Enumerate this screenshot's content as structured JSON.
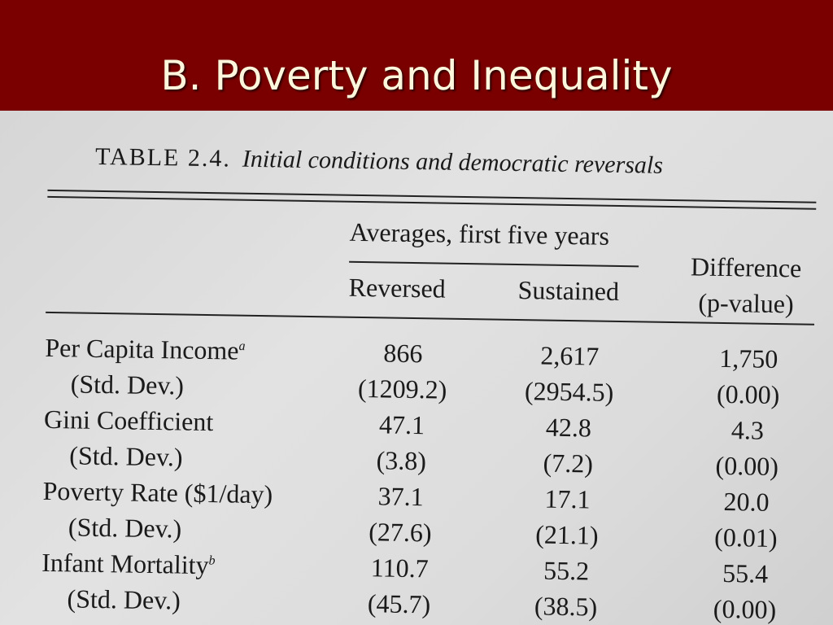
{
  "slide": {
    "title": "B. Poverty and Inequality"
  },
  "table": {
    "label": "TABLE 2.4.",
    "caption": "Initial conditions and democratic reversals",
    "group_header": "Averages, first five years",
    "columns": [
      "Reversed",
      "Sustained"
    ],
    "difference_header": [
      "Difference",
      "(p-value)"
    ],
    "rows": [
      {
        "label": "Per Capita Income",
        "note": "a",
        "values": [
          "866",
          "2,617",
          "1,750"
        ]
      },
      {
        "label": "(Std. Dev.)",
        "values": [
          "(1209.2)",
          "(2954.5)",
          "(0.00)"
        ]
      },
      {
        "label": "Gini Coefficient",
        "values": [
          "47.1",
          "42.8",
          "4.3"
        ]
      },
      {
        "label": "(Std. Dev.)",
        "values": [
          "(3.8)",
          "(7.2)",
          "(0.00)"
        ]
      },
      {
        "label": "Poverty Rate ($1/day)",
        "values": [
          "37.1",
          "17.1",
          "20.0"
        ]
      },
      {
        "label": "(Std. Dev.)",
        "values": [
          "(27.6)",
          "(21.1)",
          "(0.01)"
        ]
      },
      {
        "label": "Infant Mortality",
        "note": "b",
        "values": [
          "110.7",
          "55.2",
          "55.4"
        ]
      },
      {
        "label": "(Std. Dev.)",
        "values": [
          "(45.7)",
          "(38.5)",
          "(0.00)"
        ]
      }
    ]
  }
}
